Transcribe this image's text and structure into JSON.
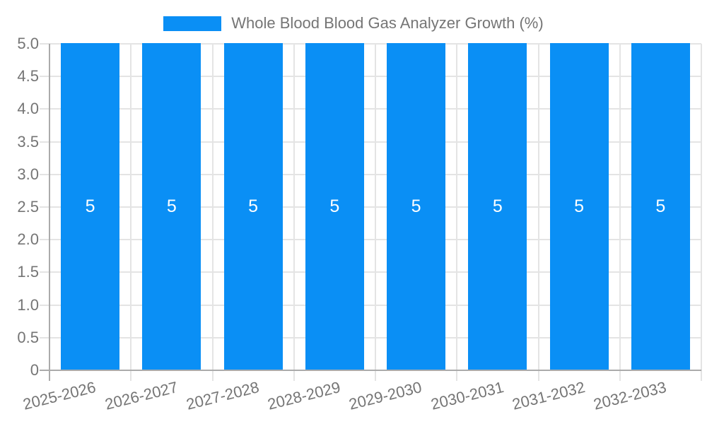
{
  "chart_data": {
    "type": "bar",
    "title": "Whole Blood Blood Gas Analyzer Growth (%)",
    "legend": {
      "position": "top",
      "entries": [
        {
          "label": "Whole Blood Blood Gas Analyzer Growth (%)",
          "swatch_color": "#0A8FF5"
        }
      ]
    },
    "categories": [
      "2025-2026",
      "2026-2027",
      "2027-2028",
      "2028-2029",
      "2029-2030",
      "2030-2031",
      "2031-2032",
      "2032-2033"
    ],
    "series": [
      {
        "name": "Whole Blood Blood Gas Analyzer Growth (%)",
        "values": [
          5,
          5,
          5,
          5,
          5,
          5,
          5,
          5
        ],
        "bar_labels": [
          "5",
          "5",
          "5",
          "5",
          "5",
          "5",
          "5",
          "5"
        ]
      }
    ],
    "xlabel": "",
    "ylabel": "",
    "ylim": [
      0,
      5
    ],
    "ytick_step": 0.5,
    "ytick_labels_top_to_bottom": [
      "5.0",
      "4.5",
      "4.0",
      "3.5",
      "3.0",
      "2.5",
      "2.0",
      "1.5",
      "1.0",
      "0.5",
      "0"
    ],
    "grid": true,
    "colors": {
      "bar": "#0A8FF5",
      "bar_label_text": "#FFFFFF",
      "axis_text": "#757575",
      "gridline": "#E4E4E4",
      "axis_line": "#ABABAB",
      "background": "#FFFFFF"
    }
  }
}
